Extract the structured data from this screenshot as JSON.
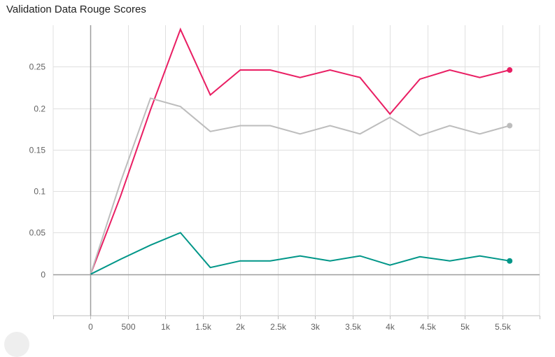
{
  "chart_data": {
    "type": "line",
    "title": "Validation Data Rouge Scores",
    "xlabel": "",
    "ylabel": "",
    "xlim": [
      -500,
      6000
    ],
    "ylim": [
      -0.05,
      0.3
    ],
    "x_ticks": [
      0,
      500,
      1000,
      1500,
      2000,
      2500,
      3000,
      3500,
      4000,
      4500,
      5000,
      5500
    ],
    "x_tick_labels": [
      "0",
      "500",
      "1k",
      "1.5k",
      "2k",
      "2.5k",
      "3k",
      "3.5k",
      "4k",
      "4.5k",
      "5k",
      "5.5k"
    ],
    "y_ticks": [
      0,
      0.05,
      0.1,
      0.15,
      0.2,
      0.25
    ],
    "y_tick_labels": [
      "0",
      "0.05",
      "0.1",
      "0.15",
      "0.2",
      "0.25"
    ],
    "grid": true,
    "legend": "none",
    "series": [
      {
        "color": "#e91e63",
        "x": [
          0,
          400,
          800,
          1200,
          1600,
          2000,
          2400,
          2800,
          3200,
          3600,
          4000,
          4400,
          4800,
          5200,
          5600
        ],
        "values": [
          0.0,
          0.094,
          0.198,
          0.295,
          0.216,
          0.246,
          0.246,
          0.237,
          0.246,
          0.237,
          0.193,
          0.235,
          0.246,
          0.237,
          0.246
        ]
      },
      {
        "color": "#bdbdbd",
        "x": [
          0,
          400,
          800,
          1200,
          1600,
          2000,
          2400,
          2800,
          3200,
          3600,
          4000,
          4400,
          4800,
          5200,
          5600
        ],
        "values": [
          0.0,
          0.111,
          0.212,
          0.202,
          0.172,
          0.179,
          0.179,
          0.169,
          0.179,
          0.169,
          0.189,
          0.167,
          0.179,
          0.169,
          0.179
        ]
      },
      {
        "color": "#009688",
        "x": [
          0,
          400,
          800,
          1200,
          1600,
          2000,
          2400,
          2800,
          3200,
          3600,
          4000,
          4400,
          4800,
          5200,
          5600
        ],
        "values": [
          0.0,
          0.018,
          0.035,
          0.05,
          0.008,
          0.016,
          0.016,
          0.022,
          0.016,
          0.022,
          0.011,
          0.021,
          0.016,
          0.022,
          0.016
        ]
      }
    ]
  }
}
